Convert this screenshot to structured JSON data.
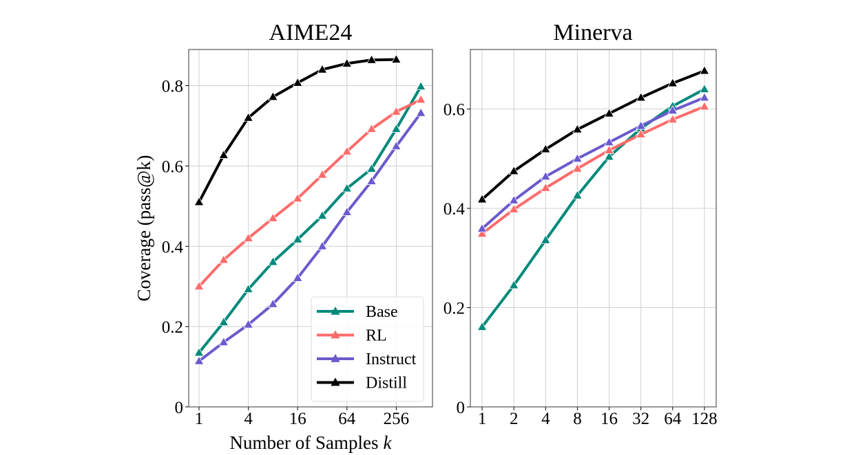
{
  "chart_data": [
    {
      "type": "line",
      "title": "AIME24",
      "xlabel": "Number of Samples",
      "xlabel_var": "k",
      "ylabel": "Coverage (pass@k)",
      "x_scale": "log2",
      "x": [
        1,
        2,
        4,
        8,
        16,
        32,
        64,
        128,
        256,
        512
      ],
      "xticks": [
        1,
        4,
        16,
        64,
        256
      ],
      "xtick_labels": [
        "1",
        "4",
        "16",
        "64",
        "256"
      ],
      "ylim": [
        0,
        0.89
      ],
      "yticks": [
        0,
        0.2,
        0.4,
        0.6,
        0.8
      ],
      "ytick_labels": [
        "0",
        "0.2",
        "0.4",
        "0.6",
        "0.8"
      ],
      "grid": true,
      "legend": "lower-right",
      "marker": "triangle",
      "series": [
        {
          "name": "Base",
          "color": "#00897b",
          "values": [
            0.135,
            0.211,
            0.293,
            0.361,
            0.417,
            0.476,
            0.544,
            0.593,
            0.692,
            0.798
          ]
        },
        {
          "name": "RL",
          "color": "#ff6b6b",
          "values": [
            0.3,
            0.366,
            0.42,
            0.47,
            0.519,
            0.578,
            0.636,
            0.692,
            0.735,
            0.765
          ]
        },
        {
          "name": "Instruct",
          "color": "#6a5acd",
          "values": [
            0.114,
            0.161,
            0.205,
            0.256,
            0.321,
            0.4,
            0.485,
            0.562,
            0.649,
            0.732
          ]
        },
        {
          "name": "Distill",
          "color": "#000000",
          "values": [
            0.51,
            0.627,
            0.72,
            0.772,
            0.807,
            0.84,
            0.855,
            0.864,
            0.865,
            null
          ]
        }
      ]
    },
    {
      "type": "line",
      "title": "Minerva",
      "x_scale": "log2",
      "x": [
        1,
        2,
        4,
        8,
        16,
        32,
        64,
        128
      ],
      "xticks": [
        1,
        2,
        4,
        8,
        16,
        32,
        64,
        128
      ],
      "xtick_labels": [
        "1",
        "2",
        "4",
        "8",
        "16",
        "32",
        "64",
        "128"
      ],
      "ylim": [
        0,
        0.72
      ],
      "yticks": [
        0,
        0.2,
        0.4,
        0.6
      ],
      "ytick_labels": [
        "0",
        "0.2",
        "0.4",
        "0.6"
      ],
      "grid": true,
      "marker": "triangle",
      "series": [
        {
          "name": "Base",
          "color": "#00897b",
          "values": [
            0.161,
            0.245,
            0.336,
            0.426,
            0.504,
            0.561,
            0.606,
            0.64
          ]
        },
        {
          "name": "RL",
          "color": "#ff6b6b",
          "values": [
            0.349,
            0.398,
            0.441,
            0.48,
            0.517,
            0.549,
            0.579,
            0.605
          ]
        },
        {
          "name": "Instruct",
          "color": "#6a5acd",
          "values": [
            0.359,
            0.416,
            0.464,
            0.5,
            0.533,
            0.566,
            0.597,
            0.623
          ]
        },
        {
          "name": "Distill",
          "color": "#000000",
          "values": [
            0.418,
            0.475,
            0.519,
            0.559,
            0.591,
            0.623,
            0.652,
            0.677
          ]
        }
      ]
    }
  ]
}
